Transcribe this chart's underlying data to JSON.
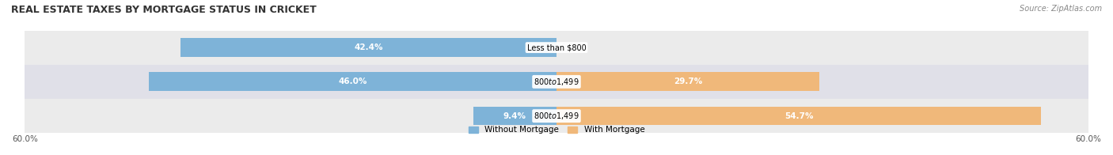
{
  "title": "REAL ESTATE TAXES BY MORTGAGE STATUS IN CRICKET",
  "source": "Source: ZipAtlas.com",
  "bars": [
    {
      "label": "Less than $800",
      "without_mortgage": 42.4,
      "with_mortgage": 0.0
    },
    {
      "label": "$800 to $1,499",
      "without_mortgage": 46.0,
      "with_mortgage": 29.7
    },
    {
      "label": "$800 to $1,499",
      "without_mortgage": 9.4,
      "with_mortgage": 54.7
    }
  ],
  "xlim": 60.0,
  "color_without": "#7eb3d8",
  "color_with": "#f0b87a",
  "bg_row_light": "#f0f0f0",
  "bg_row_dark": "#e0e0e8",
  "bar_height": 0.55,
  "title_fontsize": 9,
  "label_fontsize": 7.5,
  "tick_fontsize": 7.5,
  "legend_fontsize": 7.5,
  "source_fontsize": 7
}
